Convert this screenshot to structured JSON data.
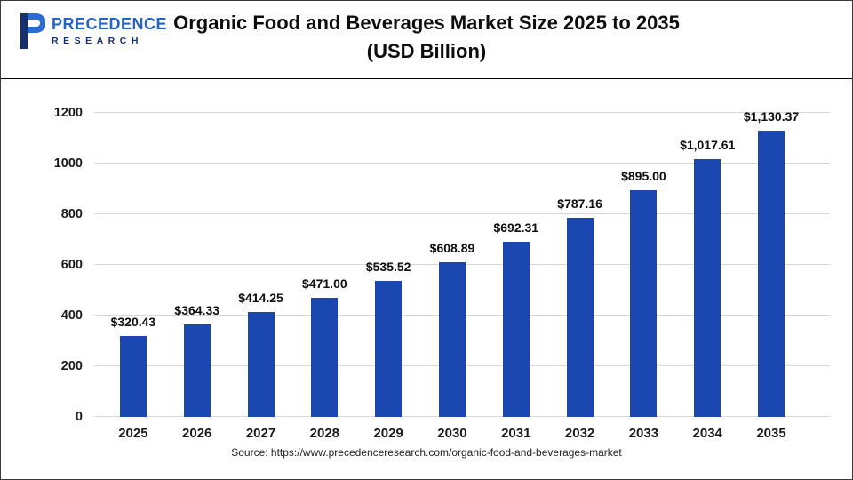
{
  "header": {
    "brand_line1": "PRECEDENCE",
    "brand_line2": "RESEARCH",
    "title_line1": "Organic Food and Beverages Market Size 2025 to 2035",
    "title_line2": "(USD Billion)"
  },
  "chart_data": {
    "type": "bar",
    "title": "Organic Food and Beverages Market Size 2025 to 2035",
    "subtitle": "(USD Billion)",
    "categories": [
      "2025",
      "2026",
      "2027",
      "2028",
      "2029",
      "2030",
      "2031",
      "2032",
      "2033",
      "2034",
      "2035"
    ],
    "values": [
      320.43,
      364.33,
      414.25,
      471.0,
      535.52,
      608.89,
      692.31,
      787.16,
      895.0,
      1017.61,
      1130.37
    ],
    "value_labels": [
      "$320.43",
      "$364.33",
      "$414.25",
      "$471.00",
      "$535.52",
      "$608.89",
      "$692.31",
      "$787.16",
      "$895.00",
      "$1,017.61",
      "$1,130.37"
    ],
    "xlabel": "",
    "ylabel": "",
    "ylim": [
      0,
      1200
    ],
    "yticks": [
      0,
      200,
      400,
      600,
      800,
      1000,
      1200
    ],
    "grid": true,
    "legend": "none",
    "bar_color": "#1b47b0",
    "source": "Source: https://www.precedenceresearch.com/organic-food-and-beverages-market"
  }
}
